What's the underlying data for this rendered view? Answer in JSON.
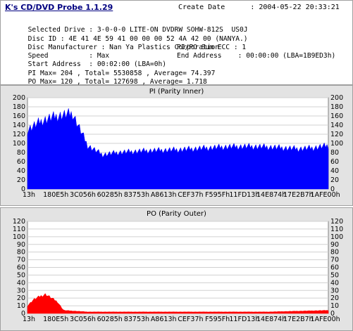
{
  "app_title": "K's CD/DVD Probe 1.1.29",
  "create_date": "Create Date      : 2004-05-22 20:33:21",
  "info": [
    {
      "left": "Selected Drive : 3-0-0-0 LITE-ON DVDRW SOHW-812S  US0J",
      "right": ""
    },
    {
      "left": "Disc ID : 4E 41 4E 59 41 00 00 00 52 4A 42 00 (NANYA.)",
      "right": ""
    },
    {
      "left": "Disc Manufacturer : Nan Ya Plastics Corporation",
      "right": ""
    },
    {
      "left": "Speed          : Max",
      "right": "PI/PO Sum ECC : 1"
    },
    {
      "left": "Start Address  : 00:02:00 (LBA=0h)",
      "right": "End Address    : 00:00:00 (LBA=1B9ED3h)"
    },
    {
      "left": "PI Max= 204 , Total= 5530858 , Average= 74.397",
      "right": ""
    },
    {
      "left": "PO Max= 120 , Total= 127698 , Average= 1.718",
      "right": ""
    }
  ],
  "colors": {
    "pi": "#0000ff",
    "po": "#ff0000",
    "panel": "#e3e3e3",
    "plot_bg": "#ffffff"
  },
  "chart_data": [
    {
      "type": "area",
      "title": "PI (Parity Inner)",
      "x_tick_labels": [
        "13h",
        "180E5h",
        "3C056h",
        "60285h",
        "83753h",
        "A8613h",
        "CEF37h",
        "F595Fh",
        "11FD13h",
        "14E874h",
        "17E2B7h",
        "1AFE00h"
      ],
      "y_ticks": [
        0,
        20,
        40,
        60,
        80,
        100,
        120,
        140,
        160,
        180,
        200
      ],
      "ylim": [
        0,
        200
      ],
      "grid": true,
      "series": [
        {
          "x_fraction": [
            0.0,
            0.05,
            0.1,
            0.15,
            0.2,
            0.25,
            0.3,
            0.35,
            0.4,
            0.45,
            0.5,
            0.55,
            0.6,
            0.65,
            0.7,
            0.75,
            0.8,
            0.85,
            0.9,
            0.95,
            1.0
          ],
          "values": [
            130,
            150,
            160,
            165,
            95,
            75,
            80,
            82,
            84,
            85,
            86,
            88,
            90,
            92,
            93,
            93,
            92,
            90,
            88,
            90,
            95
          ]
        }
      ]
    },
    {
      "type": "area",
      "title": "PO (Parity Outer)",
      "x_tick_labels": [
        "13h",
        "180E5h",
        "3C056h",
        "60285h",
        "83753h",
        "A8613h",
        "CEF37h",
        "F595Fh",
        "11FD13h",
        "14E874h",
        "17E2B7h",
        "1AFE00h"
      ],
      "y_ticks": [
        0,
        10,
        20,
        30,
        40,
        50,
        60,
        70,
        80,
        90,
        100,
        110,
        120
      ],
      "ylim": [
        0,
        120
      ],
      "grid": true,
      "series": [
        {
          "x_fraction": [
            0.0,
            0.02,
            0.04,
            0.06,
            0.08,
            0.1,
            0.12,
            0.2,
            0.3,
            0.4,
            0.5,
            0.6,
            0.7,
            0.8,
            0.9,
            1.0
          ],
          "values": [
            10,
            18,
            22,
            25,
            20,
            15,
            4,
            2,
            2,
            2,
            2,
            2,
            2,
            2,
            3,
            4
          ]
        }
      ]
    }
  ]
}
